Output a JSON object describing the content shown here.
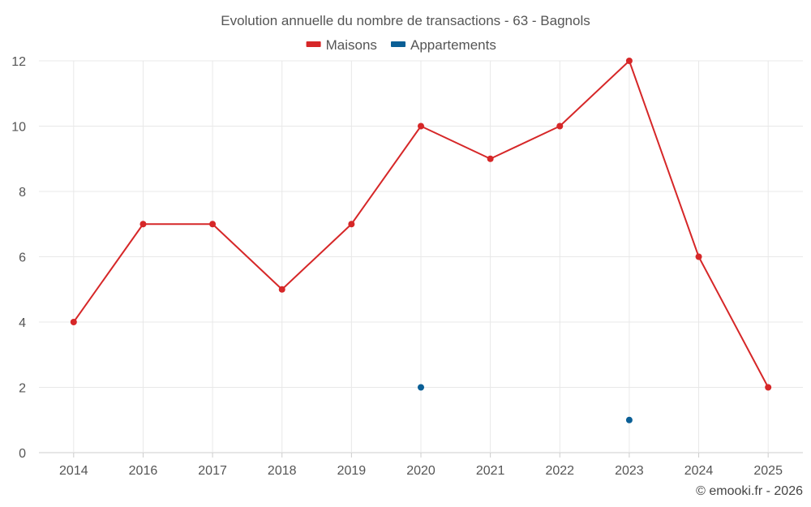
{
  "chart_data": {
    "type": "line",
    "title": "Evolution annuelle du nombre de transactions - 63 - Bagnols",
    "categories": [
      "2014",
      "2016",
      "2017",
      "2018",
      "2019",
      "2020",
      "2021",
      "2022",
      "2023",
      "2024",
      "2025"
    ],
    "series": [
      {
        "name": "Maisons",
        "color": "#d62728",
        "values": [
          4,
          7,
          7,
          5,
          7,
          10,
          9,
          10,
          12,
          6,
          2
        ]
      },
      {
        "name": "Appartements",
        "color": "#0a5f96",
        "values": [
          null,
          null,
          null,
          null,
          null,
          2,
          null,
          null,
          1,
          null,
          null
        ]
      }
    ],
    "ylim": [
      0,
      12
    ],
    "yticks": [
      0,
      2,
      4,
      6,
      8,
      10,
      12
    ],
    "xlabel": "",
    "ylabel": "",
    "grid": true,
    "legend_position": "top-center"
  },
  "credit": "© emooki.fr - 2026"
}
